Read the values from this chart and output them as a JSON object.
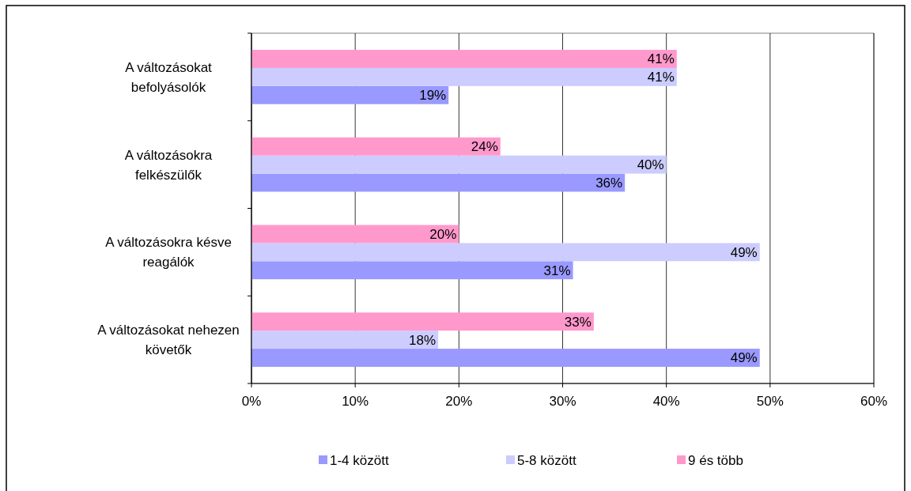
{
  "chart_data": {
    "type": "bar",
    "orientation": "horizontal",
    "categories": [
      "A változásokat befolyásolók",
      "A változásokra felkészülők",
      "A változásokra késve reagálók",
      "A változásokat nehezen követők"
    ],
    "series": [
      {
        "name": "1-4 között",
        "color": "#9999ff",
        "values": [
          19,
          36,
          31,
          49
        ],
        "value_labels": [
          "19%",
          "36%",
          "31%",
          "49%"
        ]
      },
      {
        "name": "5-8 között",
        "color": "#ccccff",
        "values": [
          41,
          40,
          49,
          18
        ],
        "value_labels": [
          "41%",
          "40%",
          "49%",
          "18%"
        ]
      },
      {
        "name": "9 és több",
        "color": "#ff99cc",
        "values": [
          41,
          24,
          20,
          33
        ],
        "value_labels": [
          "41%",
          "24%",
          "20%",
          "33%"
        ]
      }
    ],
    "xlim": [
      0,
      60
    ],
    "xticks": [
      {
        "value": 0,
        "label": "0%"
      },
      {
        "value": 10,
        "label": "10%"
      },
      {
        "value": 20,
        "label": "20%"
      },
      {
        "value": 30,
        "label": "30%"
      },
      {
        "value": 40,
        "label": "40%"
      },
      {
        "value": 50,
        "label": "50%"
      },
      {
        "value": 60,
        "label": "60%"
      }
    ],
    "grid": "x",
    "legend": "bottom"
  }
}
